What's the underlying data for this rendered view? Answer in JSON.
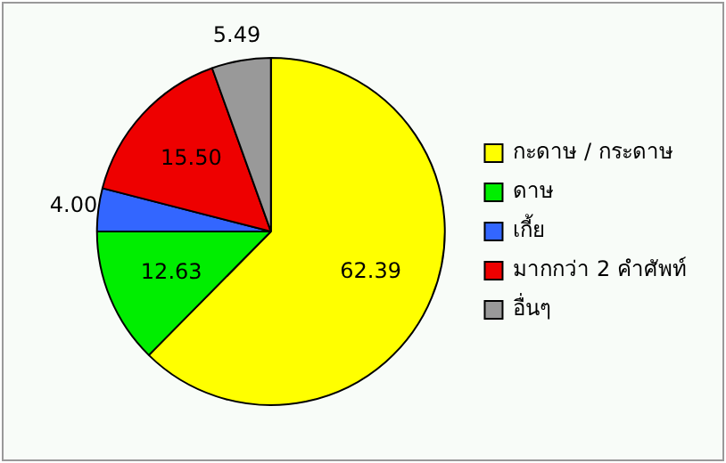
{
  "chart_data": {
    "type": "pie",
    "categories": [
      "กะดาษ / กระดาษ",
      "ดาษ",
      "เกี้ย",
      "มากกว่า 2 คำศัพท์",
      "อื่นๆ"
    ],
    "values": [
      62.39,
      12.63,
      4.0,
      15.5,
      5.49
    ],
    "colors": [
      "#ffff00",
      "#00ee00",
      "#3366ff",
      "#ee0000",
      "#999999"
    ],
    "value_labels": [
      "62.39",
      "12.63",
      "4.00",
      "15.50",
      "5.49"
    ],
    "legend": "right"
  }
}
